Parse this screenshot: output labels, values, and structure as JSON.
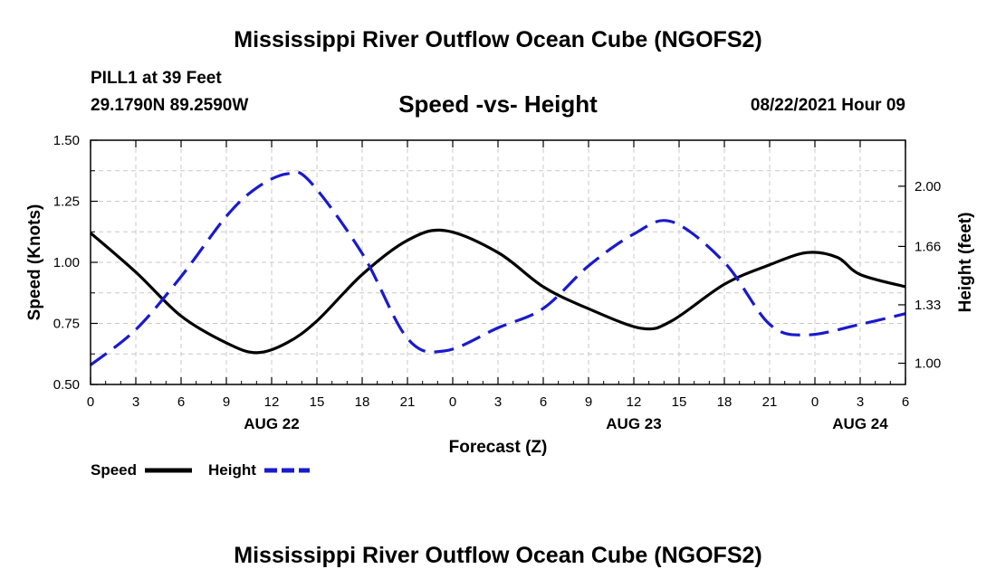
{
  "title": "Mississippi River Outflow Ocean Cube (NGOFS2)",
  "footer_title": "Mississippi River Outflow Ocean Cube (NGOFS2)",
  "station": "PILL1 at 39 Feet",
  "coords": "29.1790N  89.2590W",
  "subtitle": "Speed -vs- Height",
  "datetime": "08/22/2021 Hour 09",
  "legend": {
    "speed_label": "Speed",
    "height_label": "Height"
  },
  "colors": {
    "speed": "#000000",
    "height": "#1a1acc",
    "grid": "#c8c8c8"
  },
  "chart_data": {
    "type": "line",
    "title": "Speed -vs- Height",
    "xlabel": "Forecast (Z)",
    "ylabel": "Speed (Knots)",
    "y2label": "Height (feet)",
    "x_range_hours": [
      0,
      54
    ],
    "ylim": [
      0.5,
      1.5
    ],
    "y2lim": [
      0.88,
      2.26
    ],
    "grid": true,
    "legend_position": "bottom-left",
    "x_ticks": [
      {
        "h": 0,
        "label": "0"
      },
      {
        "h": 3,
        "label": "3"
      },
      {
        "h": 6,
        "label": "6"
      },
      {
        "h": 9,
        "label": "9"
      },
      {
        "h": 12,
        "label": "12"
      },
      {
        "h": 15,
        "label": "15"
      },
      {
        "h": 18,
        "label": "18"
      },
      {
        "h": 21,
        "label": "21"
      },
      {
        "h": 24,
        "label": "0"
      },
      {
        "h": 27,
        "label": "3"
      },
      {
        "h": 30,
        "label": "6"
      },
      {
        "h": 33,
        "label": "9"
      },
      {
        "h": 36,
        "label": "12"
      },
      {
        "h": 39,
        "label": "15"
      },
      {
        "h": 42,
        "label": "18"
      },
      {
        "h": 45,
        "label": "21"
      },
      {
        "h": 48,
        "label": "0"
      },
      {
        "h": 51,
        "label": "3"
      },
      {
        "h": 54,
        "label": "6"
      }
    ],
    "date_labels": [
      {
        "h": 12,
        "label": "AUG 22"
      },
      {
        "h": 36,
        "label": "AUG 23"
      },
      {
        "h": 51,
        "label": "AUG 24"
      }
    ],
    "y_ticks": [
      {
        "v": 0.5,
        "label": "0.50"
      },
      {
        "v": 0.75,
        "label": "0.75"
      },
      {
        "v": 1.0,
        "label": "1.00"
      },
      {
        "v": 1.25,
        "label": "1.25"
      },
      {
        "v": 1.5,
        "label": "1.50"
      }
    ],
    "y2_ticks": [
      {
        "v": 1.0,
        "label": "1.00"
      },
      {
        "v": 1.33,
        "label": "1.33"
      },
      {
        "v": 1.66,
        "label": "1.66"
      },
      {
        "v": 2.0,
        "label": "2.00"
      }
    ],
    "series": [
      {
        "name": "Speed",
        "axis": "left",
        "style": "solid",
        "x": [
          0,
          3,
          6,
          9,
          11,
          13,
          15,
          18,
          21,
          23.5,
          27,
          30,
          33,
          36.5,
          38.5,
          42,
          45,
          47.5,
          49.5,
          51,
          54
        ],
        "values": [
          1.12,
          0.96,
          0.78,
          0.67,
          0.63,
          0.67,
          0.76,
          0.95,
          1.09,
          1.13,
          1.04,
          0.9,
          0.81,
          0.73,
          0.76,
          0.91,
          0.99,
          1.04,
          1.02,
          0.95,
          0.9
        ]
      },
      {
        "name": "Height",
        "axis": "right",
        "style": "dashed",
        "x": [
          0,
          3,
          6,
          9,
          11,
          13,
          14.5,
          18,
          21,
          23.5,
          27,
          30,
          33,
          36,
          38.5,
          42,
          45,
          47.5,
          51,
          54
        ],
        "values": [
          0.99,
          1.19,
          1.49,
          1.83,
          1.99,
          2.07,
          2.03,
          1.62,
          1.14,
          1.07,
          1.2,
          1.31,
          1.55,
          1.73,
          1.8,
          1.57,
          1.22,
          1.16,
          1.22,
          1.28
        ]
      }
    ]
  }
}
